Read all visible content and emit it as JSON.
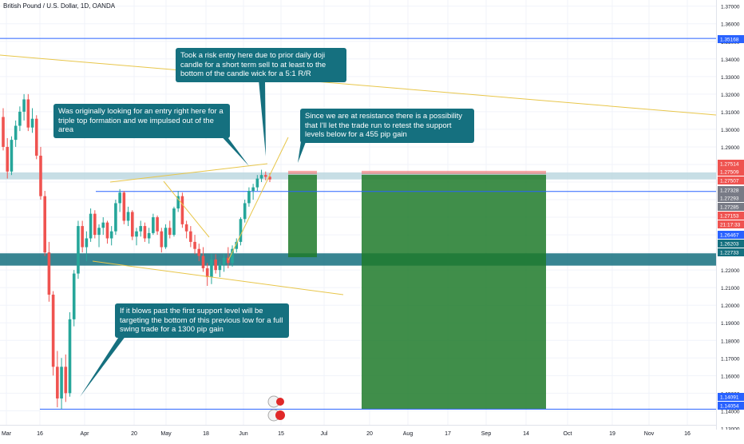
{
  "header": {
    "title": "British Pound / U.S. Dollar, 1D, OANDA"
  },
  "annotations": {
    "risk_entry": "Took a risk entry here due to prior daily doji candle for a short term sell to at least to the bottom of the candle wick for a 5:1 R/R",
    "triple_top": "Was originally looking for an entry right here for a triple top formation and we impulsed out of the area",
    "resistance": "Since we are at resistance there is a possibility that I'll let the trade run to retest the support levels below for a 455 pip gain",
    "blow_past": "If it blows past the first support level will be targeting the bottom of this previous low for a full swing trade for a 1300 pip gain"
  },
  "colors": {
    "up": "#26a69a",
    "down": "#ef5350",
    "hline": "#2962ff",
    "trend": "#e8c64a",
    "callout": "#15707f",
    "support_band": "#15707f",
    "target_zone": "#1f7a2a",
    "stop_zone": "#ef5350"
  },
  "chart_data": {
    "type": "candlestick",
    "title": "British Pound / U.S. Dollar, 1D, OANDA",
    "y_ticks": [
      "1.37000",
      "1.36000",
      "1.35000",
      "1.34000",
      "1.33000",
      "1.32000",
      "1.31000",
      "1.30000",
      "1.29000",
      "1.28000",
      "1.27000",
      "1.26000",
      "1.25000",
      "1.24000",
      "1.23000",
      "1.22000",
      "1.21000",
      "1.20000",
      "1.19000",
      "1.18000",
      "1.17000",
      "1.16000",
      "1.15000",
      "1.14000",
      "1.13000"
    ],
    "ylim": [
      1.132,
      1.3735
    ],
    "x_ticks": [
      "Mar",
      "16",
      "Apr",
      "20",
      "May",
      "18",
      "Jun",
      "15",
      "Jul",
      "20",
      "Aug",
      "17",
      "Sep",
      "14",
      "Oct",
      "19",
      "Nov",
      "16"
    ],
    "price_labels": [
      {
        "value": "1.35168",
        "kind": "line"
      },
      {
        "value": "1.27514",
        "kind": "down"
      },
      {
        "value": "1.27509",
        "kind": "down"
      },
      {
        "value": "1.27507",
        "kind": "down"
      },
      {
        "value": "1.27328",
        "kind": "neutral"
      },
      {
        "value": "1.27293",
        "kind": "neutral"
      },
      {
        "value": "1.27285",
        "kind": "neutral"
      },
      {
        "value": "1.27153",
        "kind": "down"
      },
      {
        "value": "21:17:33",
        "kind": "down"
      },
      {
        "value": "1.26467",
        "kind": "line"
      },
      {
        "value": "1.26203",
        "kind": "band"
      },
      {
        "value": "1.22733",
        "kind": "band"
      },
      {
        "value": "1.14091",
        "kind": "line"
      },
      {
        "value": "1.14054",
        "kind": "line"
      }
    ],
    "horizontal_levels": [
      1.35168,
      1.26467,
      1.14091
    ],
    "support_zone": [
      1.2225,
      1.2295
    ],
    "resistance_zone": [
      1.2715,
      1.2755
    ],
    "position": {
      "entry": 1.2751,
      "stop": 1.2755,
      "target_1": 1.2273,
      "target_2": 1.1409
    },
    "candles": [
      [
        1.307,
        1.312,
        1.288,
        1.29
      ],
      [
        1.29,
        1.295,
        1.272,
        1.276
      ],
      [
        1.276,
        1.296,
        1.274,
        1.294
      ],
      [
        1.294,
        1.305,
        1.29,
        1.302
      ],
      [
        1.302,
        1.313,
        1.299,
        1.31
      ],
      [
        1.31,
        1.32,
        1.305,
        1.317
      ],
      [
        1.317,
        1.32,
        1.299,
        1.301
      ],
      [
        1.301,
        1.312,
        1.298,
        1.306
      ],
      [
        1.306,
        1.308,
        1.283,
        1.285
      ],
      [
        1.285,
        1.29,
        1.26,
        1.262
      ],
      [
        1.262,
        1.265,
        1.228,
        1.23
      ],
      [
        1.23,
        1.236,
        1.202,
        1.206
      ],
      [
        1.206,
        1.208,
        1.16,
        1.165
      ],
      [
        1.165,
        1.174,
        1.142,
        1.147
      ],
      [
        1.147,
        1.17,
        1.141,
        1.165
      ],
      [
        1.165,
        1.172,
        1.145,
        1.15
      ],
      [
        1.15,
        1.196,
        1.148,
        1.192
      ],
      [
        1.192,
        1.22,
        1.188,
        1.218
      ],
      [
        1.218,
        1.248,
        1.215,
        1.245
      ],
      [
        1.245,
        1.248,
        1.23,
        1.233
      ],
      [
        1.233,
        1.242,
        1.225,
        1.238
      ],
      [
        1.238,
        1.255,
        1.236,
        1.252
      ],
      [
        1.252,
        1.254,
        1.238,
        1.24
      ],
      [
        1.24,
        1.246,
        1.233,
        1.244
      ],
      [
        1.244,
        1.25,
        1.24,
        1.247
      ],
      [
        1.247,
        1.248,
        1.235,
        1.238
      ],
      [
        1.238,
        1.245,
        1.234,
        1.242
      ],
      [
        1.242,
        1.26,
        1.24,
        1.258
      ],
      [
        1.258,
        1.266,
        1.253,
        1.264
      ],
      [
        1.264,
        1.265,
        1.246,
        1.248
      ],
      [
        1.248,
        1.256,
        1.245,
        1.253
      ],
      [
        1.253,
        1.254,
        1.237,
        1.239
      ],
      [
        1.239,
        1.244,
        1.234,
        1.242
      ],
      [
        1.242,
        1.248,
        1.239,
        1.245
      ],
      [
        1.245,
        1.247,
        1.236,
        1.238
      ],
      [
        1.238,
        1.244,
        1.235,
        1.241
      ],
      [
        1.241,
        1.252,
        1.24,
        1.25
      ],
      [
        1.25,
        1.251,
        1.24,
        1.242
      ],
      [
        1.242,
        1.244,
        1.23,
        1.233
      ],
      [
        1.233,
        1.246,
        1.232,
        1.244
      ],
      [
        1.244,
        1.248,
        1.238,
        1.24
      ],
      [
        1.24,
        1.256,
        1.239,
        1.255
      ],
      [
        1.255,
        1.265,
        1.253,
        1.262
      ],
      [
        1.262,
        1.264,
        1.244,
        1.246
      ],
      [
        1.246,
        1.248,
        1.238,
        1.242
      ],
      [
        1.242,
        1.245,
        1.233,
        1.236
      ],
      [
        1.236,
        1.24,
        1.229,
        1.232
      ],
      [
        1.232,
        1.235,
        1.225,
        1.228
      ],
      [
        1.228,
        1.233,
        1.219,
        1.221
      ],
      [
        1.221,
        1.224,
        1.211,
        1.216
      ],
      [
        1.216,
        1.229,
        1.212,
        1.226
      ],
      [
        1.226,
        1.229,
        1.218,
        1.22
      ],
      [
        1.22,
        1.225,
        1.216,
        1.223
      ],
      [
        1.223,
        1.229,
        1.219,
        1.227
      ],
      [
        1.227,
        1.233,
        1.221,
        1.224
      ],
      [
        1.224,
        1.234,
        1.222,
        1.232
      ],
      [
        1.232,
        1.238,
        1.23,
        1.236
      ],
      [
        1.236,
        1.25,
        1.234,
        1.249
      ],
      [
        1.249,
        1.26,
        1.247,
        1.258
      ],
      [
        1.258,
        1.267,
        1.256,
        1.265
      ],
      [
        1.265,
        1.269,
        1.26,
        1.267
      ],
      [
        1.267,
        1.274,
        1.265,
        1.272
      ],
      [
        1.272,
        1.277,
        1.27,
        1.274
      ],
      [
        1.274,
        1.276,
        1.271,
        1.273
      ],
      [
        1.273,
        1.275,
        1.27,
        1.2715
      ]
    ]
  }
}
